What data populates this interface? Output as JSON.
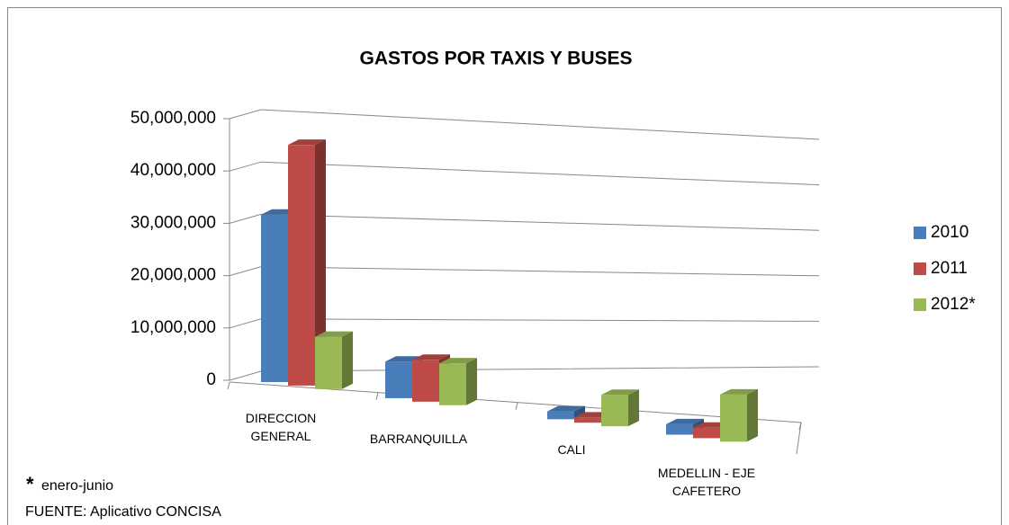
{
  "chart_data": {
    "type": "bar3d",
    "title": "GASTOS POR TAXIS Y BUSES",
    "categories": [
      "DIRECCION GENERAL",
      "BARRANQUILLA",
      "CALI",
      "MEDELLIN - EJE CAFETERO"
    ],
    "series": [
      {
        "name": "2010",
        "color": "#4a7ebb",
        "values": [
          32000000,
          7000000,
          1500000,
          2000000
        ]
      },
      {
        "name": "2011",
        "color": "#be4b48",
        "values": [
          46000000,
          8000000,
          1000000,
          2000000
        ]
      },
      {
        "name": "2012*",
        "color": "#98b954",
        "values": [
          10000000,
          8000000,
          6000000,
          9000000
        ]
      }
    ],
    "ylim": [
      0,
      50000000
    ],
    "yticks": [
      0,
      {
        "value": 10000000,
        "label": "10,000,000"
      },
      {
        "value": 20000000,
        "label": "20,000,000"
      },
      {
        "value": 30000000,
        "label": "30,000,000"
      },
      {
        "value": 40000000,
        "label": "40,000,000"
      },
      {
        "value": 50000000,
        "label": "50,000,000"
      }
    ],
    "grid": true,
    "legend": "right",
    "annotations": [
      "*",
      "enero-junio",
      "FUENTE: Aplicativo CONCISA"
    ]
  }
}
